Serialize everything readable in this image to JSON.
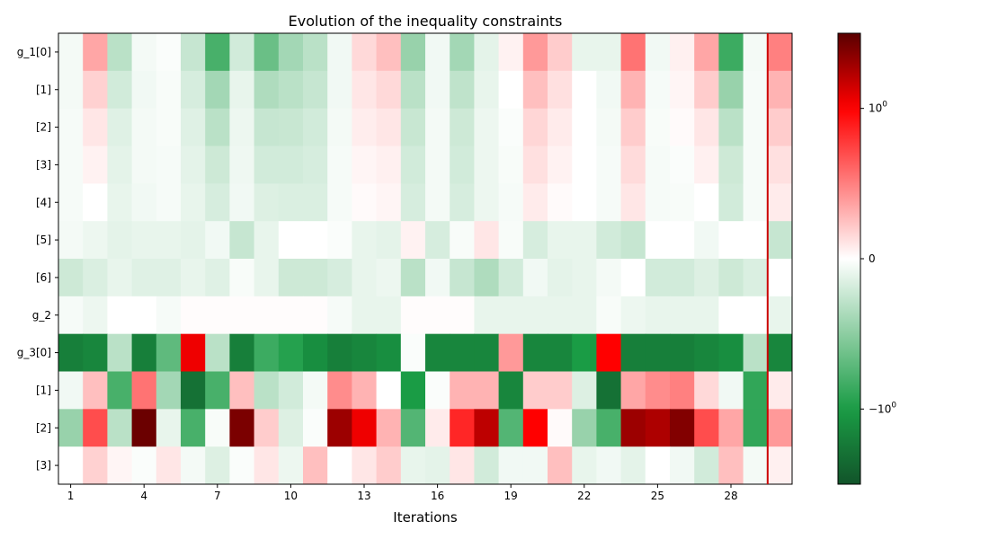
{
  "chart_data": {
    "type": "heatmap",
    "title": "Evolution of the inequality constraints",
    "xlabel": "Iterations",
    "ylabel": "",
    "x_ticks": [
      1,
      4,
      7,
      10,
      13,
      16,
      19,
      22,
      25,
      28
    ],
    "iterations": [
      1,
      2,
      3,
      4,
      5,
      6,
      7,
      8,
      9,
      10,
      11,
      12,
      13,
      14,
      15,
      16,
      17,
      18,
      19,
      20,
      21,
      22,
      23,
      24,
      25,
      26,
      27,
      28,
      29,
      30
    ],
    "row_labels": [
      "g_1[0]",
      "[1]",
      "[2]",
      "[3]",
      "[4]",
      "[5]",
      "[6]",
      "g_2",
      "g_3[0]",
      "[1]",
      "[2]",
      "[3]"
    ],
    "highlight_iteration": 29.5,
    "highlight_color": "#cc0000",
    "colorbar": {
      "scale": "symlog",
      "ticks": [
        {
          "value": 1,
          "label_base": "10",
          "label_exp": "0",
          "sign": ""
        },
        {
          "value": 0,
          "label": "0"
        },
        {
          "value": -1,
          "label_base": "10",
          "label_exp": "0",
          "sign": "−"
        }
      ],
      "range": [
        -1.5,
        1.5
      ],
      "colors": [
        "#12542a",
        "#1a9c45",
        "#ffffff",
        "#ff0000",
        "#5a0000"
      ]
    },
    "values": [
      [
        -0.05,
        0.35,
        -0.3,
        -0.05,
        -0.02,
        -0.25,
        -0.8,
        -0.2,
        -0.65,
        -0.4,
        -0.3,
        -0.06,
        0.15,
        0.25,
        -0.45,
        -0.06,
        -0.4,
        -0.12,
        0.05,
        0.4,
        0.2,
        -0.1,
        -0.1,
        0.55,
        -0.06,
        0.06,
        0.35,
        -0.85,
        -0.05,
        0.5
      ],
      [
        -0.05,
        0.18,
        -0.2,
        -0.06,
        -0.03,
        -0.18,
        -0.4,
        -0.1,
        -0.35,
        -0.3,
        -0.25,
        -0.06,
        0.1,
        0.15,
        -0.3,
        -0.06,
        -0.28,
        -0.1,
        0.0,
        0.25,
        0.12,
        0.0,
        -0.06,
        0.3,
        -0.04,
        0.04,
        0.2,
        -0.45,
        -0.04,
        0.3
      ],
      [
        -0.04,
        0.1,
        -0.14,
        -0.05,
        -0.03,
        -0.14,
        -0.3,
        -0.08,
        -0.25,
        -0.24,
        -0.2,
        -0.05,
        0.07,
        0.1,
        -0.24,
        -0.05,
        -0.22,
        -0.08,
        -0.02,
        0.16,
        0.08,
        0.0,
        -0.05,
        0.2,
        -0.03,
        0.02,
        0.1,
        -0.3,
        -0.04,
        0.2
      ],
      [
        -0.04,
        0.05,
        -0.12,
        -0.05,
        -0.04,
        -0.12,
        -0.22,
        -0.07,
        -0.2,
        -0.2,
        -0.18,
        -0.04,
        0.04,
        0.06,
        -0.2,
        -0.05,
        -0.2,
        -0.08,
        -0.03,
        0.12,
        0.05,
        0.0,
        -0.04,
        0.14,
        -0.04,
        -0.02,
        0.06,
        -0.22,
        -0.04,
        0.12
      ],
      [
        -0.04,
        0.0,
        -0.1,
        -0.06,
        -0.04,
        -0.1,
        -0.18,
        -0.06,
        -0.15,
        -0.16,
        -0.16,
        -0.04,
        0.02,
        0.04,
        -0.18,
        -0.05,
        -0.18,
        -0.08,
        -0.04,
        0.08,
        0.02,
        0.0,
        -0.04,
        0.1,
        -0.04,
        -0.03,
        0.0,
        -0.2,
        -0.04,
        0.08
      ],
      [
        -0.05,
        -0.08,
        -0.12,
        -0.1,
        -0.1,
        -0.12,
        -0.06,
        -0.25,
        -0.1,
        0.0,
        0.0,
        -0.02,
        -0.1,
        -0.12,
        0.05,
        -0.18,
        -0.03,
        0.1,
        -0.03,
        -0.18,
        -0.1,
        -0.1,
        -0.2,
        -0.25,
        0.0,
        0.0,
        -0.06,
        0.0,
        0.0,
        -0.25
      ],
      [
        -0.22,
        -0.16,
        -0.1,
        -0.14,
        -0.14,
        -0.1,
        -0.14,
        -0.03,
        -0.1,
        -0.22,
        -0.22,
        -0.18,
        -0.1,
        -0.08,
        -0.3,
        -0.06,
        -0.25,
        -0.35,
        -0.2,
        -0.06,
        -0.12,
        -0.1,
        -0.05,
        0.0,
        -0.2,
        -0.2,
        -0.15,
        -0.22,
        -0.16,
        0.0
      ],
      [
        -0.04,
        -0.08,
        0.0,
        0.0,
        -0.04,
        0.01,
        0.01,
        0.01,
        0.01,
        0.01,
        0.01,
        -0.04,
        -0.1,
        -0.1,
        0.01,
        0.01,
        0.01,
        -0.1,
        -0.1,
        -0.1,
        -0.1,
        -0.1,
        -0.03,
        -0.08,
        -0.1,
        -0.1,
        -0.1,
        0.0,
        0.0,
        -0.1
      ],
      [
        -1.2,
        -1.15,
        -0.3,
        -1.2,
        -0.7,
        1.05,
        -0.3,
        -1.2,
        -0.85,
        -0.95,
        -1.1,
        -1.2,
        -1.15,
        -1.1,
        -0.02,
        -1.15,
        -1.15,
        -1.15,
        0.4,
        -1.15,
        -1.15,
        -1.0,
        1.0,
        -1.2,
        -1.2,
        -1.2,
        -1.15,
        -1.1,
        -0.3,
        -1.15
      ],
      [
        -0.06,
        0.25,
        -0.8,
        0.55,
        -0.4,
        -1.3,
        -0.8,
        0.25,
        -0.3,
        -0.2,
        -0.05,
        0.45,
        0.3,
        0.0,
        -1.0,
        -0.02,
        0.3,
        0.3,
        -1.15,
        0.2,
        0.2,
        -0.15,
        -1.3,
        0.35,
        0.45,
        0.5,
        0.15,
        -0.06,
        -0.9,
        0.08
      ],
      [
        -0.45,
        0.7,
        -0.3,
        1.45,
        -0.1,
        -0.8,
        -0.03,
        1.4,
        0.2,
        -0.15,
        -0.02,
        1.3,
        1.05,
        0.3,
        -0.75,
        0.08,
        0.85,
        1.2,
        -0.75,
        1.0,
        0.02,
        -0.45,
        -0.8,
        1.3,
        1.25,
        1.38,
        0.7,
        0.35,
        -0.9,
        0.4
      ],
      [
        0.0,
        0.18,
        0.04,
        -0.02,
        0.1,
        -0.05,
        -0.15,
        -0.02,
        0.1,
        -0.08,
        0.25,
        0.0,
        0.1,
        0.2,
        -0.1,
        -0.12,
        0.1,
        -0.2,
        -0.06,
        -0.06,
        0.25,
        -0.1,
        -0.06,
        -0.12,
        0.0,
        -0.06,
        -0.2,
        0.25,
        -0.05,
        0.06
      ]
    ]
  }
}
